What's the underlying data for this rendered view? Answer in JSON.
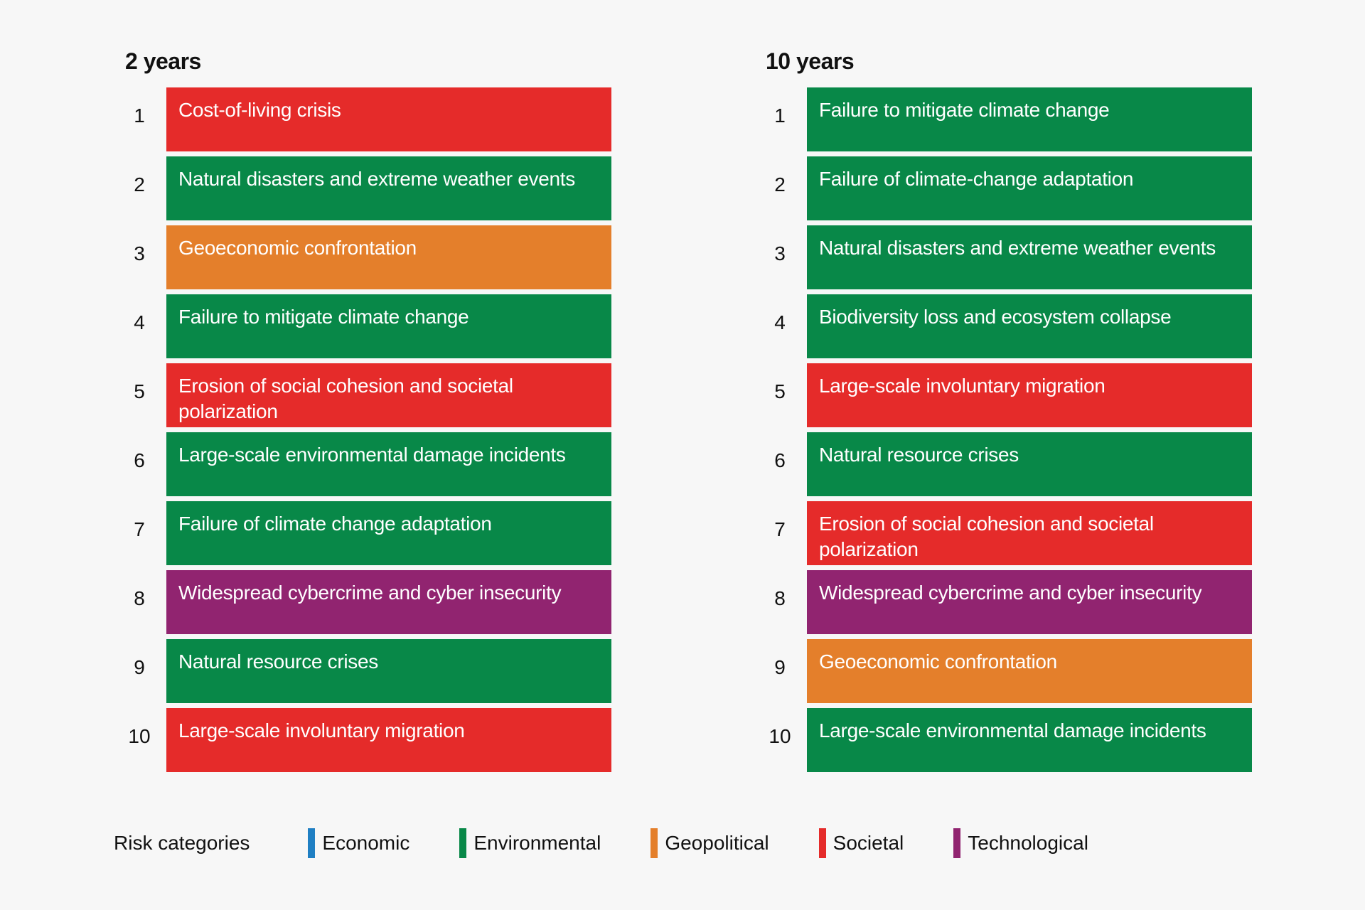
{
  "colors": {
    "Economic": "#1f7fc3",
    "Environmental": "#088848",
    "Geopolitical": "#e47f2b",
    "Societal": "#e52b2a",
    "Technological": "#912470"
  },
  "chart_data": {
    "type": "table",
    "columns": [
      {
        "title": "2 years",
        "items": [
          {
            "rank": "1",
            "label": "Cost-of-living crisis",
            "category": "Societal"
          },
          {
            "rank": "2",
            "label": "Natural disasters and extreme weather events",
            "category": "Environmental"
          },
          {
            "rank": "3",
            "label": "Geoeconomic confrontation",
            "category": "Geopolitical"
          },
          {
            "rank": "4",
            "label": "Failure to mitigate climate change",
            "category": "Environmental"
          },
          {
            "rank": "5",
            "label": "Erosion of social cohesion and societal polarization",
            "category": "Societal"
          },
          {
            "rank": "6",
            "label": "Large-scale environmental damage incidents",
            "category": "Environmental"
          },
          {
            "rank": "7",
            "label": "Failure of climate change adaptation",
            "category": "Environmental"
          },
          {
            "rank": "8",
            "label": "Widespread cybercrime and cyber insecurity",
            "category": "Technological"
          },
          {
            "rank": "9",
            "label": "Natural resource crises",
            "category": "Environmental"
          },
          {
            "rank": "10",
            "label": "Large-scale involuntary migration",
            "category": "Societal"
          }
        ]
      },
      {
        "title": "10 years",
        "items": [
          {
            "rank": "1",
            "label": "Failure to mitigate climate change",
            "category": "Environmental"
          },
          {
            "rank": "2",
            "label": "Failure of climate-change adaptation",
            "category": "Environmental"
          },
          {
            "rank": "3",
            "label": "Natural disasters and extreme weather events",
            "category": "Environmental"
          },
          {
            "rank": "4",
            "label": "Biodiversity loss and ecosystem collapse",
            "category": "Environmental"
          },
          {
            "rank": "5",
            "label": "Large-scale involuntary migration",
            "category": "Societal"
          },
          {
            "rank": "6",
            "label": "Natural resource crises",
            "category": "Environmental"
          },
          {
            "rank": "7",
            "label": "Erosion of social cohesion and societal polarization",
            "category": "Societal"
          },
          {
            "rank": "8",
            "label": "Widespread cybercrime and cyber insecurity",
            "category": "Technological"
          },
          {
            "rank": "9",
            "label": "Geoeconomic confrontation",
            "category": "Geopolitical"
          },
          {
            "rank": "10",
            "label": "Large-scale environmental damage incidents",
            "category": "Environmental"
          }
        ]
      }
    ],
    "legend": {
      "title": "Risk categories",
      "placement": "bottom",
      "items": [
        "Economic",
        "Environmental",
        "Geopolitical",
        "Societal",
        "Technological"
      ]
    }
  }
}
